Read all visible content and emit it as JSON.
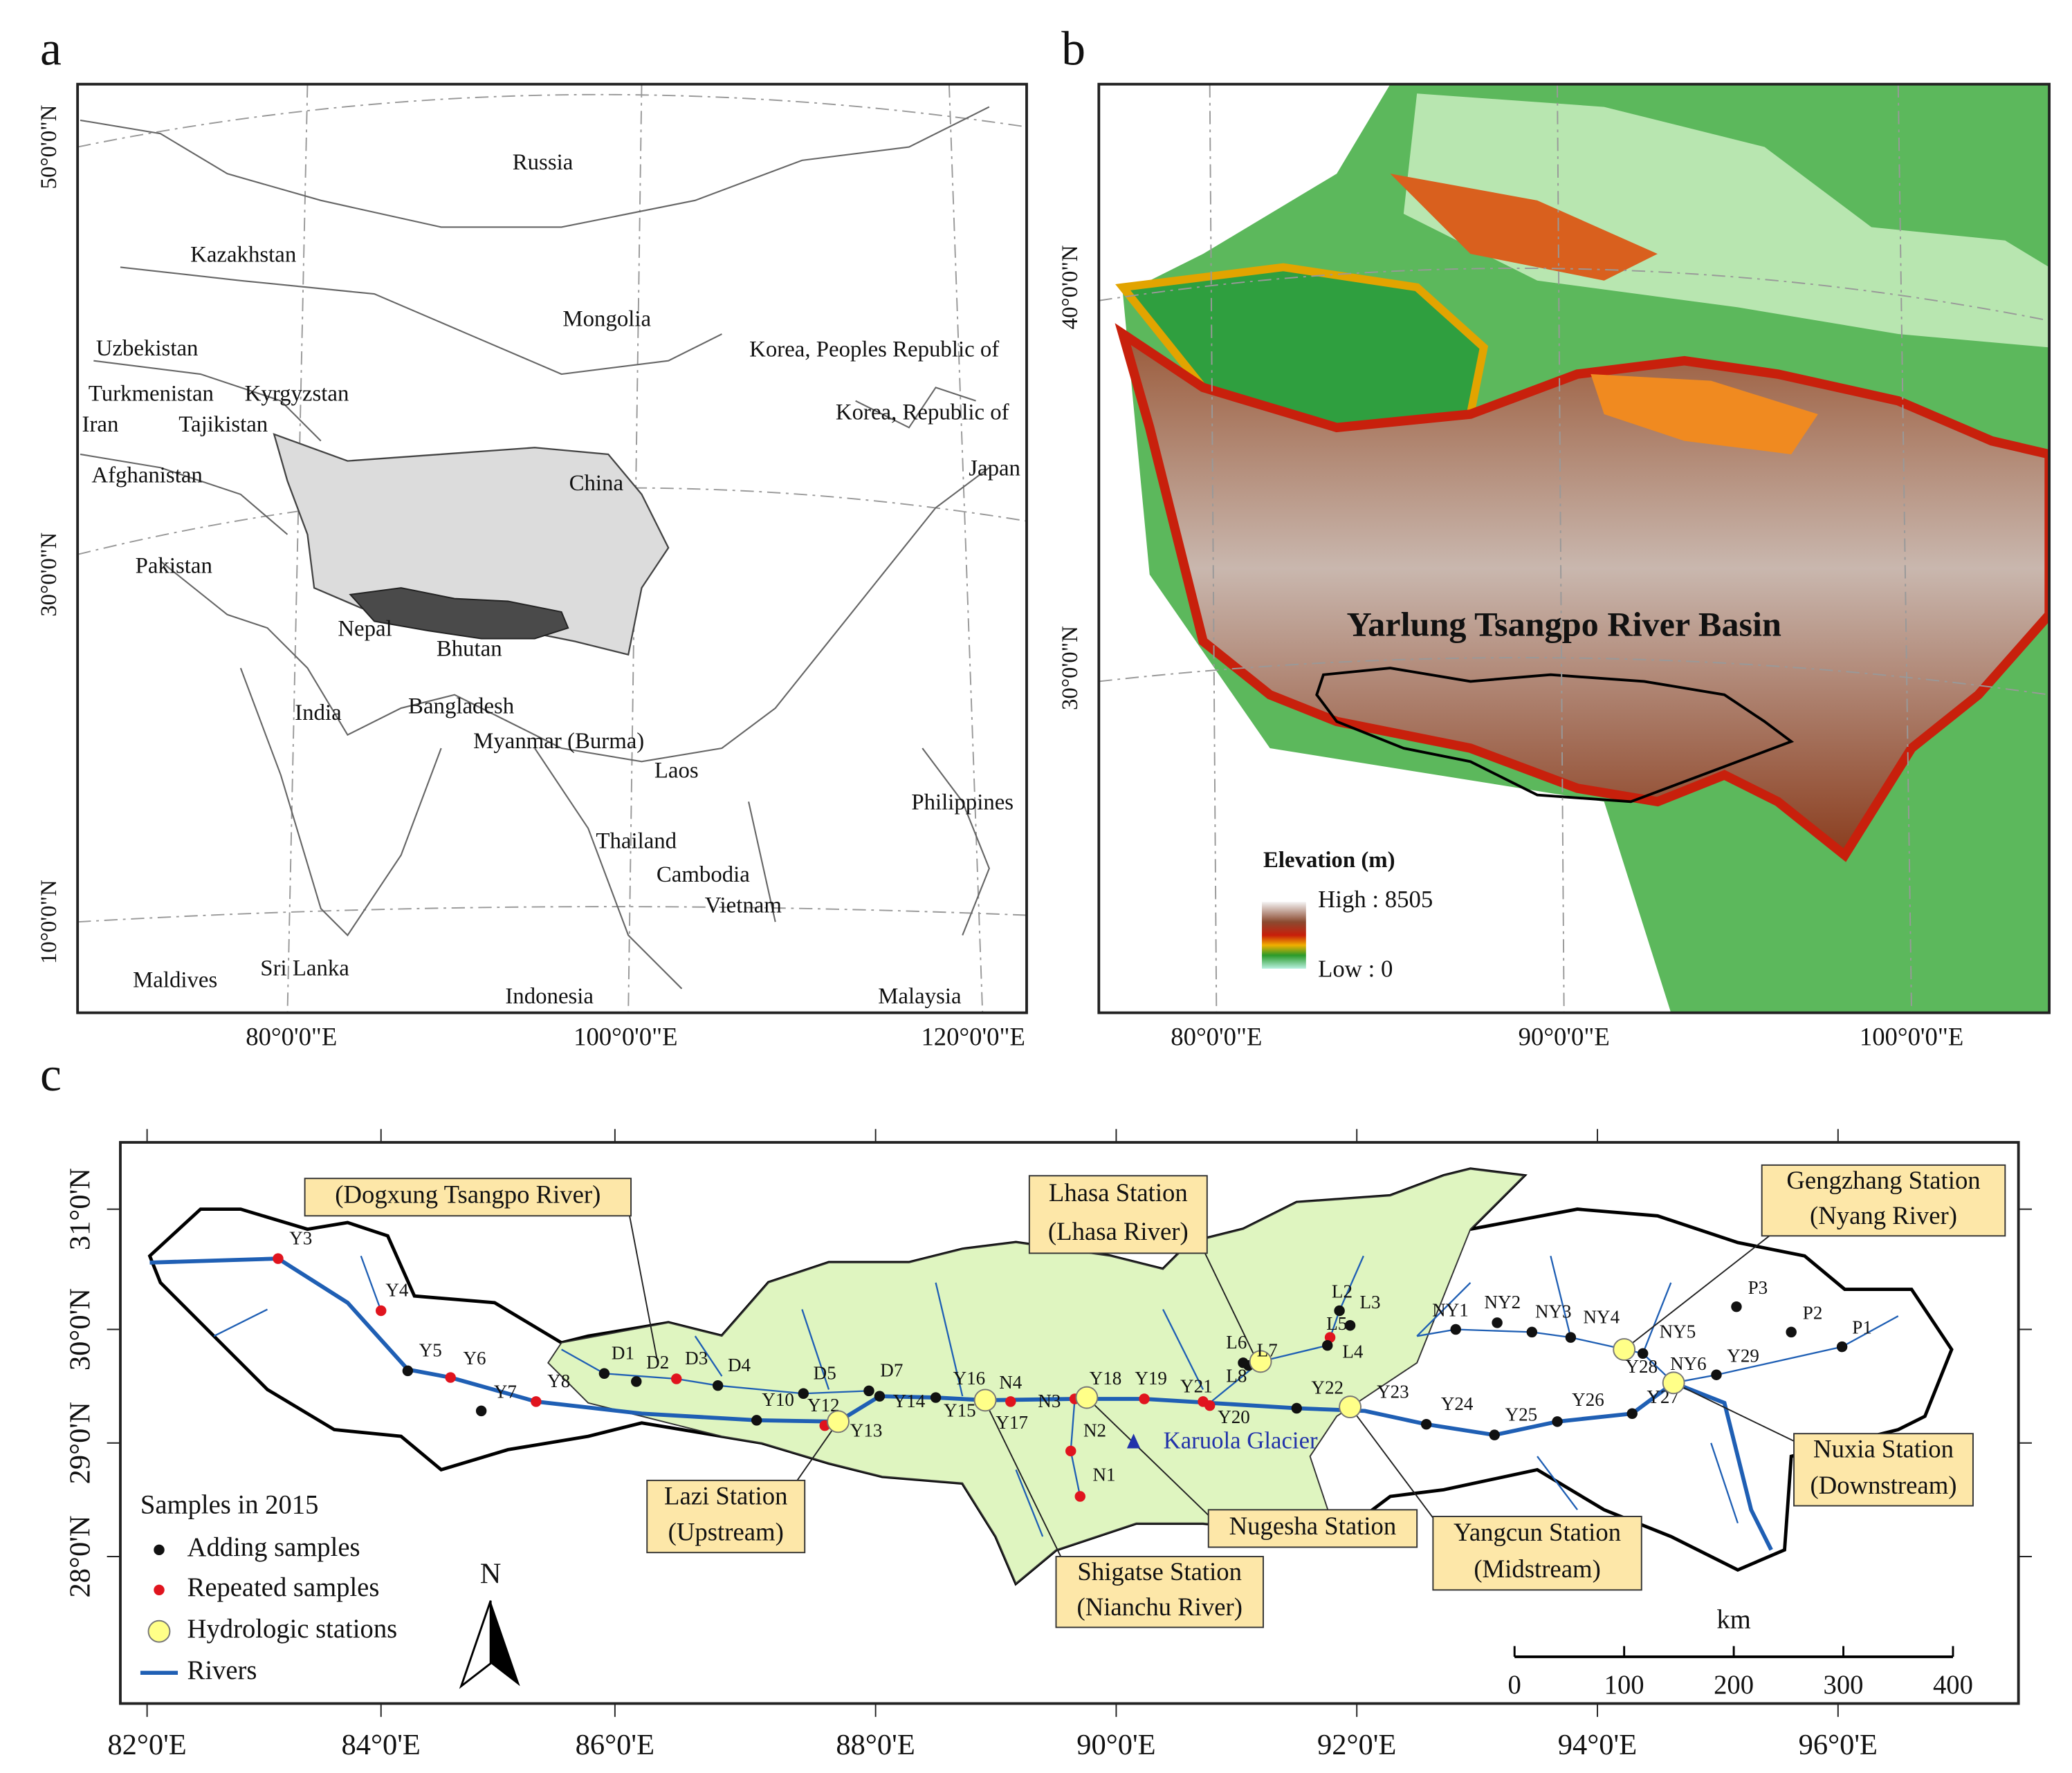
{
  "panel_a": {
    "label": "a",
    "lat_labels": [
      "50°0'0\"N",
      "30°0'0\"N",
      "10°0'0\"N"
    ],
    "lon_labels": [
      "80°0'0\"E",
      "100°0'0\"E",
      "120°0'0\"E"
    ],
    "countries": [
      "Russia",
      "Kazakhstan",
      "Mongolia",
      "Uzbekistan",
      "Korea, Peoples Republic of",
      "Turkmenistan",
      "Kyrgyzstan",
      "Iran",
      "Tajikistan",
      "Korea, Republic of",
      "Afghanistan",
      "China",
      "Japan",
      "Pakistan",
      "Nepal",
      "Bhutan",
      "India",
      "Bangladesh",
      "Myanmar (Burma)",
      "Laos",
      "Philippines",
      "Thailand",
      "Cambodia",
      "Vietnam",
      "Sri Lanka",
      "Maldives",
      "Indonesia",
      "Malaysia"
    ]
  },
  "panel_b": {
    "label": "b",
    "lat_labels": [
      "40°0'0\"N",
      "30°0'0\"N"
    ],
    "lon_labels": [
      "80°0'0\"E",
      "90°0'0\"E",
      "100°0'0\"E"
    ],
    "title": "Yarlung Tsangpo River Basin",
    "legend": {
      "title": "Elevation (m)",
      "high": "High : 8505",
      "low": "Low : 0"
    }
  },
  "panel_c": {
    "label": "c",
    "lat_labels": [
      "31°0'N",
      "30°0'N",
      "29°0'N",
      "28°0'N"
    ],
    "lon_labels": [
      "82°0'E",
      "84°0'E",
      "86°0'E",
      "88°0'E",
      "90°0'E",
      "92°0'E",
      "94°0'E",
      "96°0'E"
    ],
    "samples": [
      "Y3",
      "Y4",
      "Y5",
      "Y6",
      "Y7",
      "Y8",
      "D1",
      "D2",
      "D3",
      "D4",
      "Y10",
      "D5",
      "Y12",
      "Y13",
      "D7",
      "Y14",
      "Y16",
      "Y15",
      "N4",
      "Y17",
      "N3",
      "Y18",
      "Y19",
      "N2",
      "N1",
      "Y21",
      "Y20",
      "L8",
      "L6",
      "L7",
      "L5",
      "L2",
      "L3",
      "L4",
      "Y22",
      "Y23",
      "Y24",
      "Y25",
      "Y26",
      "Y27",
      "NY1",
      "NY2",
      "NY3",
      "NY4",
      "NY5",
      "Y28",
      "NY6",
      "Y29",
      "P3",
      "P2",
      "P1"
    ],
    "callouts": [
      [
        "(Dogxung Tsangpo River)"
      ],
      [
        "Lhasa Station",
        "(Lhasa River)"
      ],
      [
        "Gengzhang Station",
        "(Nyang River)"
      ],
      [
        "Lazi Station",
        "(Upstream)"
      ],
      [
        "Shigatse Station",
        "(Nianchu River)"
      ],
      [
        "Nugesha Station"
      ],
      [
        "Yangcun Station",
        "(Midstream)"
      ],
      [
        "Nuxia  Station",
        "(Downstream)"
      ]
    ],
    "glacier": "Karuola Glacier",
    "legend": {
      "title": "Samples in 2015",
      "items": [
        "Adding samples",
        "Repeated samples",
        "Hydrologic stations",
        "Rivers"
      ]
    },
    "north": "N",
    "scale": {
      "unit": "km",
      "ticks": [
        0,
        100,
        200,
        300,
        400
      ]
    }
  }
}
